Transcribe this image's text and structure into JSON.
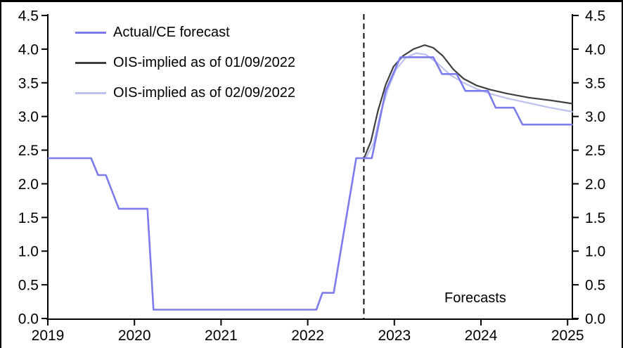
{
  "chart_data": {
    "type": "line",
    "title": "",
    "xlabel": "",
    "ylabel": "",
    "grid": false,
    "legend_position": "top-left",
    "x_axis": {
      "range": [
        2019,
        2025.06
      ],
      "tick_values": [
        2019,
        2020,
        2021,
        2022,
        2023,
        2024,
        2025
      ],
      "tick_labels": [
        "2019",
        "2020",
        "2021",
        "2022",
        "2023",
        "2024",
        "2025"
      ]
    },
    "y_axis": {
      "range": [
        0,
        4.5
      ],
      "sides": "both",
      "tick_values": [
        0,
        0.5,
        1.0,
        1.5,
        2.0,
        2.5,
        3.0,
        3.5,
        4.0,
        4.5
      ],
      "tick_labels": [
        "0.0",
        "0.5",
        "1.0",
        "1.5",
        "2.0",
        "2.5",
        "3.0",
        "3.5",
        "4.0",
        "4.5"
      ]
    },
    "annotations": {
      "divider_year": 2022.648,
      "divider_style": "dashed",
      "forecast_label": "Forecasts"
    },
    "colors": {
      "actual": "#7c7cec",
      "ois_0109": "#3f3f3f",
      "ois_0209": "#bfc0f2",
      "axis": "#000000",
      "divider": "#111111"
    },
    "series": [
      {
        "name": "Actual/CE forecast",
        "color": "#7c7cec",
        "points": [
          [
            2019.0,
            2.38
          ],
          [
            2019.5,
            2.38
          ],
          [
            2019.58,
            2.13
          ],
          [
            2019.67,
            2.13
          ],
          [
            2019.82,
            1.63
          ],
          [
            2020.15,
            1.63
          ],
          [
            2020.22,
            0.13
          ],
          [
            2022.1,
            0.13
          ],
          [
            2022.17,
            0.38
          ],
          [
            2022.3,
            0.38
          ],
          [
            2022.56,
            2.38
          ],
          [
            2022.74,
            2.38
          ],
          [
            2022.9,
            3.38
          ],
          [
            2023.07,
            3.88
          ],
          [
            2023.45,
            3.88
          ],
          [
            2023.55,
            3.63
          ],
          [
            2023.72,
            3.63
          ],
          [
            2023.82,
            3.38
          ],
          [
            2024.08,
            3.38
          ],
          [
            2024.17,
            3.13
          ],
          [
            2024.38,
            3.13
          ],
          [
            2024.48,
            2.88
          ],
          [
            2025.06,
            2.88
          ]
        ]
      },
      {
        "name": "OIS-implied as of 01/09/2022",
        "color": "#3f3f3f",
        "points": [
          [
            2022.65,
            2.38
          ],
          [
            2022.73,
            2.63
          ],
          [
            2022.81,
            3.08
          ],
          [
            2022.9,
            3.47
          ],
          [
            2022.99,
            3.74
          ],
          [
            2023.1,
            3.9
          ],
          [
            2023.22,
            4.0
          ],
          [
            2023.35,
            4.06
          ],
          [
            2023.45,
            4.02
          ],
          [
            2023.56,
            3.9
          ],
          [
            2023.68,
            3.7
          ],
          [
            2023.8,
            3.56
          ],
          [
            2023.95,
            3.46
          ],
          [
            2024.1,
            3.4
          ],
          [
            2024.3,
            3.34
          ],
          [
            2024.55,
            3.28
          ],
          [
            2024.8,
            3.24
          ],
          [
            2025.06,
            3.19
          ]
        ]
      },
      {
        "name": "OIS-implied as of 02/09/2022",
        "color": "#bfc0f2",
        "points": [
          [
            2022.67,
            2.38
          ],
          [
            2022.76,
            2.6
          ],
          [
            2022.84,
            3.05
          ],
          [
            2022.93,
            3.42
          ],
          [
            2023.02,
            3.7
          ],
          [
            2023.13,
            3.87
          ],
          [
            2023.25,
            3.94
          ],
          [
            2023.36,
            3.92
          ],
          [
            2023.5,
            3.79
          ],
          [
            2023.65,
            3.61
          ],
          [
            2023.8,
            3.5
          ],
          [
            2023.95,
            3.41
          ],
          [
            2024.1,
            3.34
          ],
          [
            2024.3,
            3.27
          ],
          [
            2024.55,
            3.2
          ],
          [
            2024.8,
            3.13
          ],
          [
            2025.06,
            3.07
          ]
        ]
      }
    ]
  }
}
